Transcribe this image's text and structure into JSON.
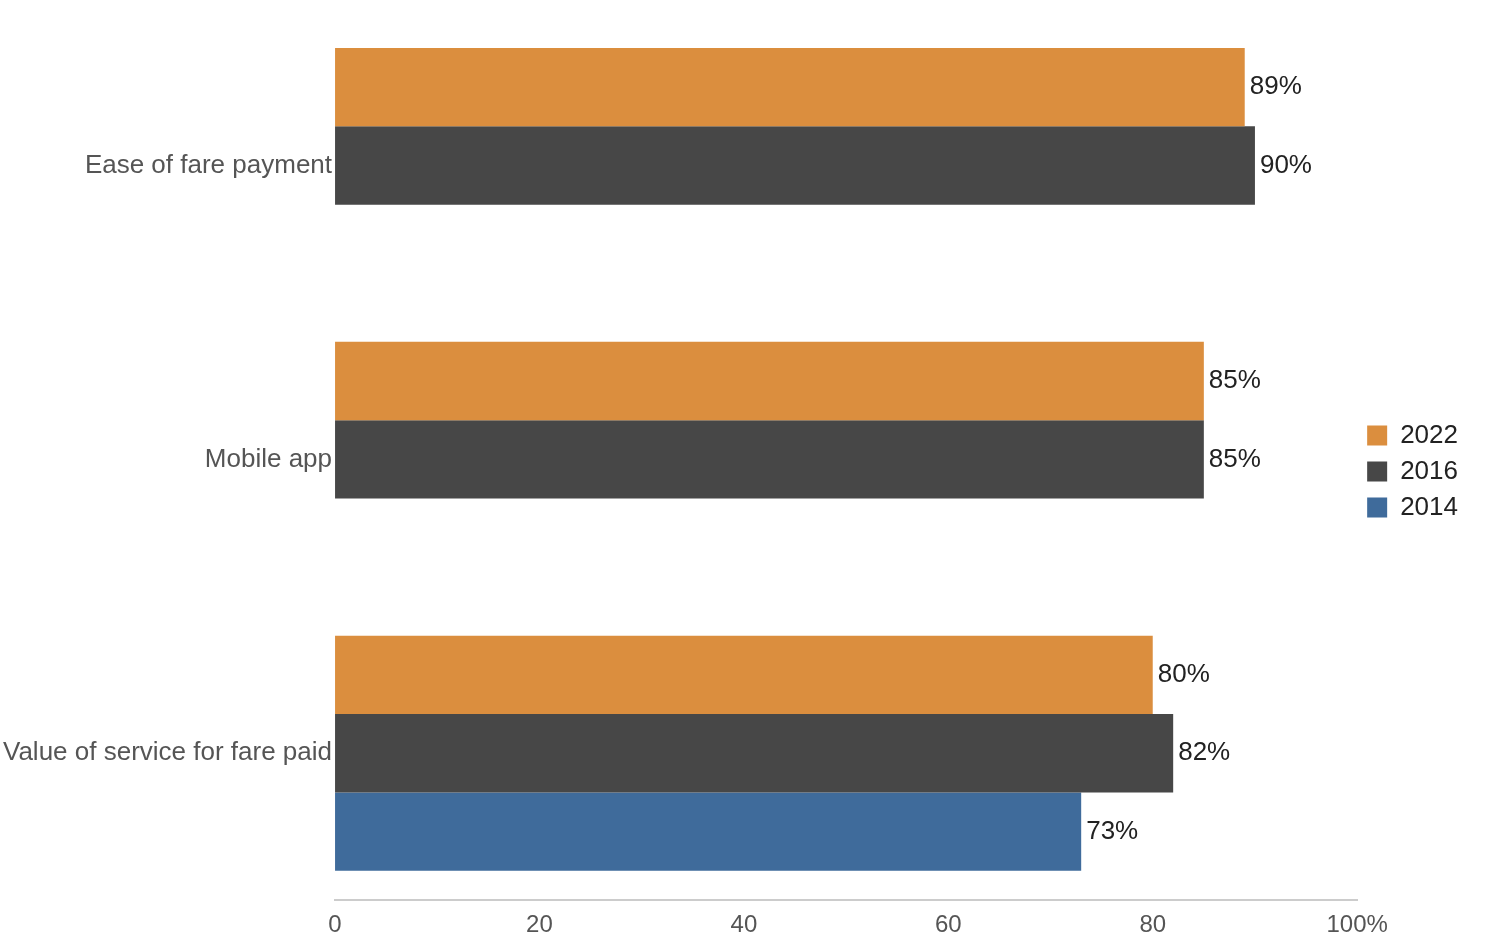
{
  "chart_data": {
    "type": "bar",
    "orientation": "horizontal",
    "categories": [
      "Ease of fare payment",
      "Mobile app",
      "Value of service for fare paid"
    ],
    "series": [
      {
        "name": "2022",
        "color": "#db8e3e",
        "values": [
          89,
          85,
          80
        ],
        "value_labels": [
          "89%",
          "85%",
          "80%"
        ]
      },
      {
        "name": "2016",
        "color": "#474747",
        "values": [
          90,
          85,
          82
        ],
        "value_labels": [
          "90%",
          "85%",
          "82%"
        ]
      },
      {
        "name": "2014",
        "color": "#3f6b9b",
        "values": [
          null,
          null,
          73
        ],
        "value_labels": [
          null,
          null,
          "73%"
        ]
      }
    ],
    "xlim": [
      0,
      100
    ],
    "xticks": [
      0,
      20,
      40,
      60,
      80,
      {
        "value": 100,
        "label": "100%"
      }
    ],
    "grid": false,
    "legend": "right"
  }
}
